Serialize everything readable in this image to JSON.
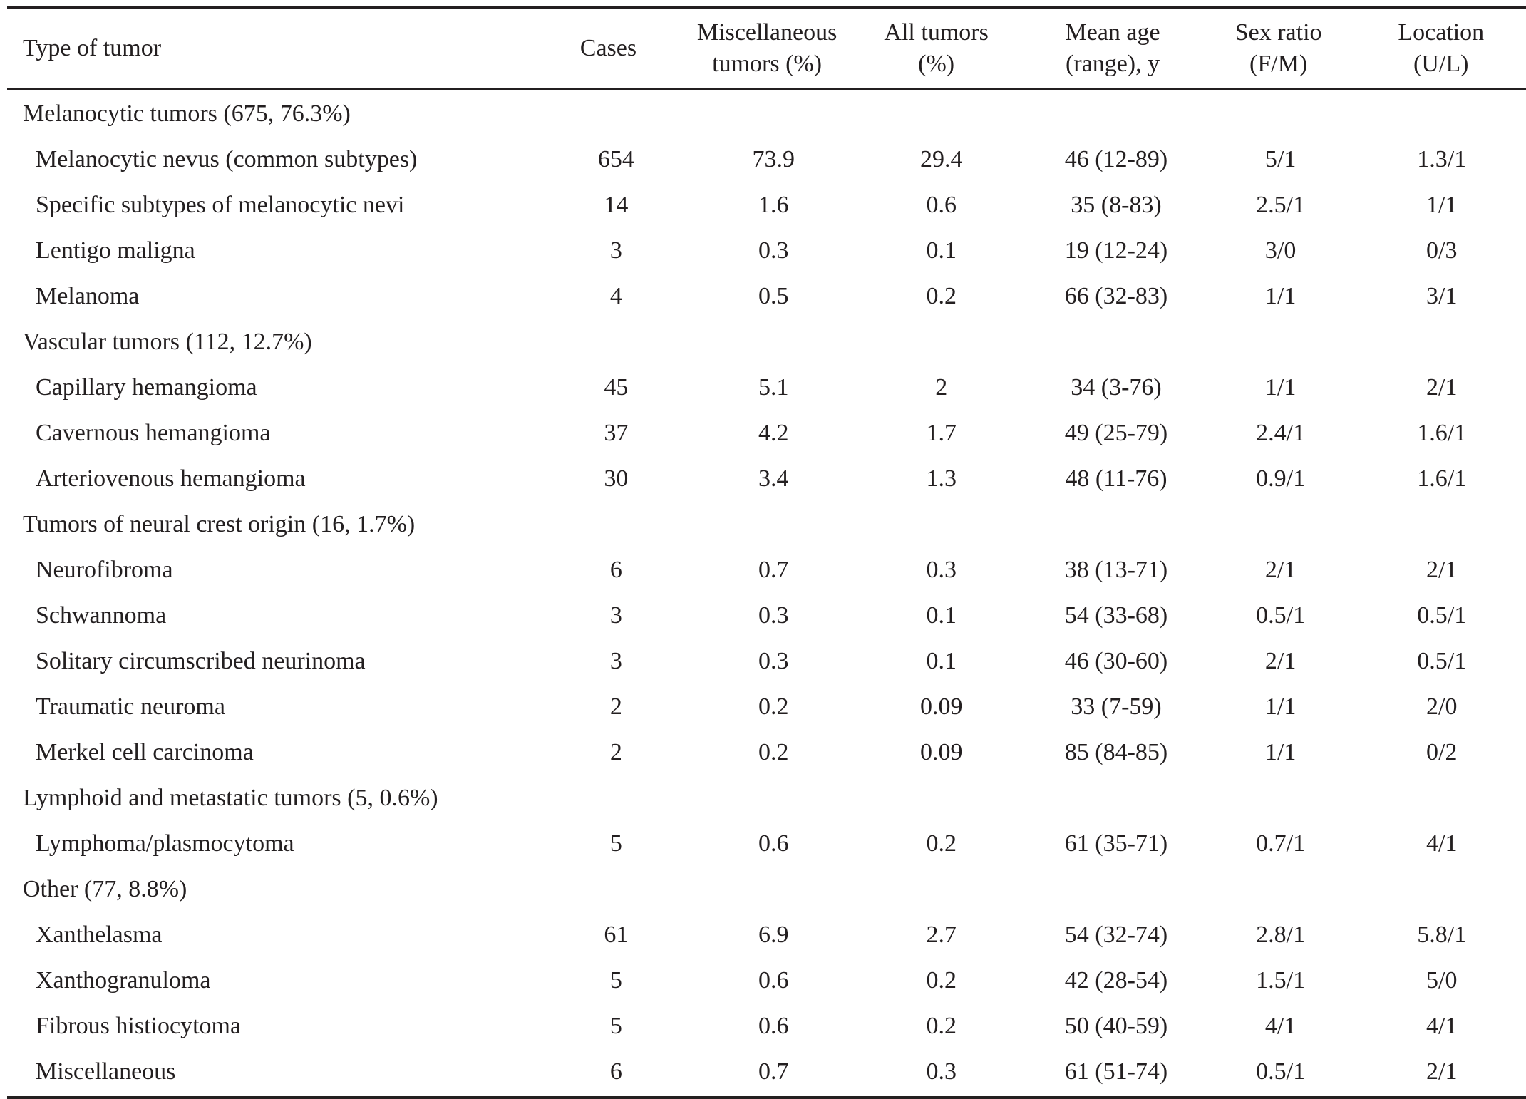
{
  "header": {
    "type": "Type of tumor",
    "cases": "Cases",
    "misc_line1": "Miscellaneous",
    "misc_line2": "tumors (%)",
    "all_line1": "All tumors",
    "all_line2": "(%)",
    "age_line1": "Mean age",
    "age_line2": "(range), y",
    "sex_line1": "Sex ratio",
    "sex_line2": "(F/M)",
    "loc_line1": "Location",
    "loc_line2": "(U/L)"
  },
  "groups": [
    {
      "title": "Melanocytic tumors (675, 76.3%)",
      "rows": [
        {
          "name": "Melanocytic nevus (common subtypes)",
          "cases": "654",
          "misc": "73.9",
          "all": "29.4",
          "age": "46 (12-89)",
          "sex": "5/1",
          "loc": "1.3/1"
        },
        {
          "name": "Specific subtypes of melanocytic nevi",
          "cases": "14",
          "misc": "1.6",
          "all": "0.6",
          "age": "35 (8-83)",
          "sex": "2.5/1",
          "loc": "1/1"
        },
        {
          "name": "Lentigo maligna",
          "cases": "3",
          "misc": "0.3",
          "all": "0.1",
          "age": "19 (12-24)",
          "sex": "3/0",
          "loc": "0/3"
        },
        {
          "name": "Melanoma",
          "cases": "4",
          "misc": "0.5",
          "all": "0.2",
          "age": "66 (32-83)",
          "sex": "1/1",
          "loc": "3/1"
        }
      ]
    },
    {
      "title": "Vascular tumors (112, 12.7%)",
      "rows": [
        {
          "name": "Capillary hemangioma",
          "cases": "45",
          "misc": "5.1",
          "all": "2",
          "age": "34 (3-76)",
          "sex": "1/1",
          "loc": "2/1"
        },
        {
          "name": "Cavernous hemangioma",
          "cases": "37",
          "misc": "4.2",
          "all": "1.7",
          "age": "49 (25-79)",
          "sex": "2.4/1",
          "loc": "1.6/1"
        },
        {
          "name": "Arteriovenous hemangioma",
          "cases": "30",
          "misc": "3.4",
          "all": "1.3",
          "age": "48 (11-76)",
          "sex": "0.9/1",
          "loc": "1.6/1"
        }
      ]
    },
    {
      "title": "Tumors of neural crest origin (16, 1.7%)",
      "rows": [
        {
          "name": "Neurofibroma",
          "cases": "6",
          "misc": "0.7",
          "all": "0.3",
          "age": "38 (13-71)",
          "sex": "2/1",
          "loc": "2/1"
        },
        {
          "name": "Schwannoma",
          "cases": "3",
          "misc": "0.3",
          "all": "0.1",
          "age": "54 (33-68)",
          "sex": "0.5/1",
          "loc": "0.5/1"
        },
        {
          "name": "Solitary circumscribed neurinoma",
          "cases": "3",
          "misc": "0.3",
          "all": "0.1",
          "age": "46 (30-60)",
          "sex": "2/1",
          "loc": "0.5/1"
        },
        {
          "name": "Traumatic neuroma",
          "cases": "2",
          "misc": "0.2",
          "all": "0.09",
          "age": "33 (7-59)",
          "sex": "1/1",
          "loc": "2/0"
        },
        {
          "name": "Merkel cell carcinoma",
          "cases": "2",
          "misc": "0.2",
          "all": "0.09",
          "age": "85 (84-85)",
          "sex": "1/1",
          "loc": "0/2"
        }
      ]
    },
    {
      "title": "Lymphoid and metastatic tumors (5, 0.6%)",
      "rows": [
        {
          "name": "Lymphoma/plasmocytoma",
          "cases": "5",
          "misc": "0.6",
          "all": "0.2",
          "age": "61 (35-71)",
          "sex": "0.7/1",
          "loc": "4/1"
        }
      ]
    },
    {
      "title": "Other (77, 8.8%)",
      "rows": [
        {
          "name": "Xanthelasma",
          "cases": "61",
          "misc": "6.9",
          "all": "2.7",
          "age": "54 (32-74)",
          "sex": "2.8/1",
          "loc": "5.8/1"
        },
        {
          "name": "Xanthogranuloma",
          "cases": "5",
          "misc": "0.6",
          "all": "0.2",
          "age": "42 (28-54)",
          "sex": "1.5/1",
          "loc": "5/0"
        },
        {
          "name": "Fibrous histiocytoma",
          "cases": "5",
          "misc": "0.6",
          "all": "0.2",
          "age": "50 (40-59)",
          "sex": "4/1",
          "loc": "4/1"
        },
        {
          "name": "Miscellaneous",
          "cases": "6",
          "misc": "0.7",
          "all": "0.3",
          "age": "61 (51-74)",
          "sex": "0.5/1",
          "loc": "2/1"
        }
      ]
    }
  ]
}
